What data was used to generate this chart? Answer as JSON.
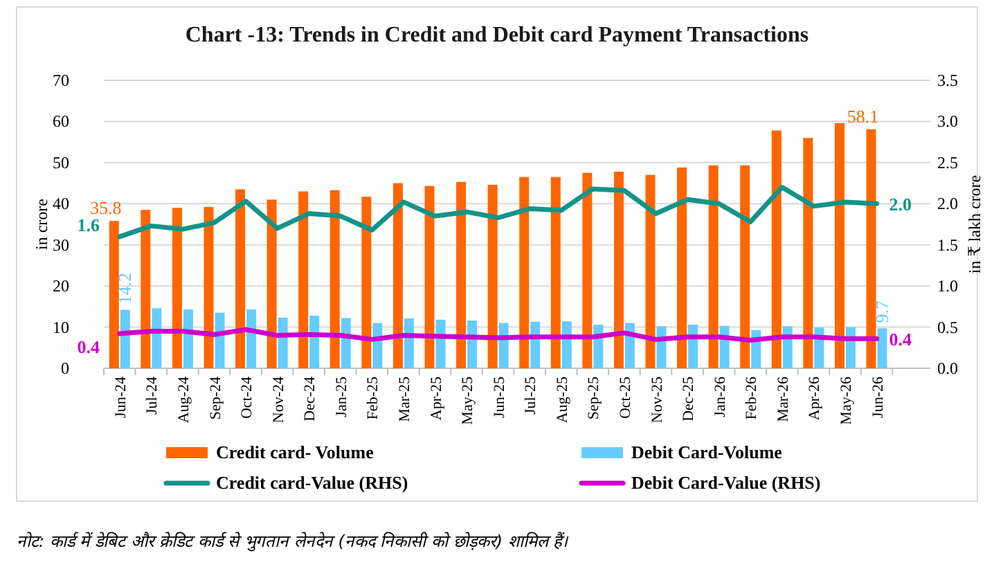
{
  "chart_data": {
    "type": "bar",
    "title": "Chart -13: Trends in Credit and Debit card Payment Transactions",
    "ylabel": "in crore",
    "y2label": "in ₹ lakh crore",
    "categories": [
      "Jun-24",
      "Jul-24",
      "Aug-24",
      "Sep-24",
      "Oct-24",
      "Nov-24",
      "Dec-24",
      "Jan-25",
      "Feb-25",
      "Mar-25",
      "Apr-25",
      "May-25",
      "Jun-25",
      "Jul-25",
      "Aug-25",
      "Sep-25",
      "Oct-25",
      "Nov-25",
      "Dec-25",
      "Jan-26",
      "Feb-26",
      "Mar-26",
      "Apr-26",
      "May-26",
      "Jun-26"
    ],
    "series": [
      {
        "name": "Credit card- Volume",
        "color": "#ff6600",
        "values": [
          35.8,
          38.5,
          39,
          39.2,
          43.5,
          41,
          43,
          43.3,
          41.7,
          45,
          44.3,
          45.3,
          44.6,
          46.5,
          46.5,
          47.5,
          47.8,
          47,
          48.8,
          49.3,
          49.3,
          57.8,
          56,
          59.6,
          58.1
        ],
        "value_labels": [
          "35.8",
          null,
          null,
          null,
          null,
          null,
          null,
          null,
          null,
          null,
          null,
          null,
          null,
          null,
          null,
          null,
          null,
          null,
          null,
          null,
          null,
          null,
          null,
          null,
          "58.1"
        ]
      },
      {
        "name": "Debit Card-Volume",
        "color": "#66ccff",
        "values": [
          14.2,
          14.6,
          14.3,
          13.5,
          14.3,
          12.3,
          12.8,
          12.2,
          11,
          12.1,
          11.8,
          11.6,
          11,
          11.3,
          11.4,
          10.6,
          11,
          10.2,
          10.6,
          10.3,
          9.3,
          10.2,
          9.9,
          10,
          9.7
        ],
        "value_labels": [
          "14.2",
          null,
          null,
          null,
          null,
          null,
          null,
          null,
          null,
          null,
          null,
          null,
          null,
          null,
          null,
          null,
          null,
          null,
          null,
          null,
          null,
          null,
          null,
          null,
          "9.7"
        ]
      },
      {
        "name": "Credit card-Value (RHS)",
        "type": "line",
        "axis": "y2",
        "color": "#139489",
        "values": [
          1.6,
          1.73,
          1.69,
          1.77,
          2.03,
          1.7,
          1.88,
          1.85,
          1.68,
          2.02,
          1.85,
          1.9,
          1.83,
          1.94,
          1.92,
          2.18,
          2.16,
          1.88,
          2.05,
          2.0,
          1.78,
          2.2,
          1.97,
          2.02,
          2.0
        ],
        "value_labels": [
          "1.6",
          null,
          null,
          null,
          null,
          null,
          null,
          null,
          null,
          null,
          null,
          null,
          null,
          null,
          null,
          null,
          null,
          null,
          null,
          null,
          null,
          null,
          null,
          null,
          "2.0"
        ]
      },
      {
        "name": "Debit Card-Value (RHS)",
        "type": "line",
        "axis": "y2",
        "color": "#cc00cc",
        "values": [
          0.42,
          0.45,
          0.45,
          0.41,
          0.47,
          0.4,
          0.41,
          0.4,
          0.35,
          0.4,
          0.39,
          0.38,
          0.37,
          0.38,
          0.38,
          0.38,
          0.43,
          0.35,
          0.38,
          0.38,
          0.34,
          0.38,
          0.38,
          0.36,
          0.36
        ],
        "value_labels": [
          "0.4",
          null,
          null,
          null,
          null,
          null,
          null,
          null,
          null,
          null,
          null,
          null,
          null,
          null,
          null,
          null,
          null,
          null,
          null,
          null,
          null,
          null,
          null,
          null,
          "0.4"
        ]
      }
    ],
    "ylim": [
      0,
      70
    ],
    "yticks": [
      0,
      10,
      20,
      30,
      40,
      50,
      60,
      70
    ],
    "y2lim": [
      0,
      3.5
    ],
    "y2ticks": [
      {
        "value": 0,
        "label": "0.0"
      },
      {
        "value": 0.5,
        "label": "0.5"
      },
      {
        "value": 1,
        "label": "1.0"
      },
      {
        "value": 1.5,
        "label": "1.5"
      },
      {
        "value": 2,
        "label": "2.0"
      },
      {
        "value": 2.5,
        "label": "2.5"
      },
      {
        "value": 3,
        "label": "3.0"
      },
      {
        "value": 3.5,
        "label": "3.5"
      }
    ],
    "grid": "y",
    "legend": "bottom",
    "annotations": [
      "नोट: कार्ड में डेबिट और क्रेडिट कार्ड से भुगतान लेनदेन (नकद निकासी को छोड़कर) शामिल हैं।"
    ]
  }
}
